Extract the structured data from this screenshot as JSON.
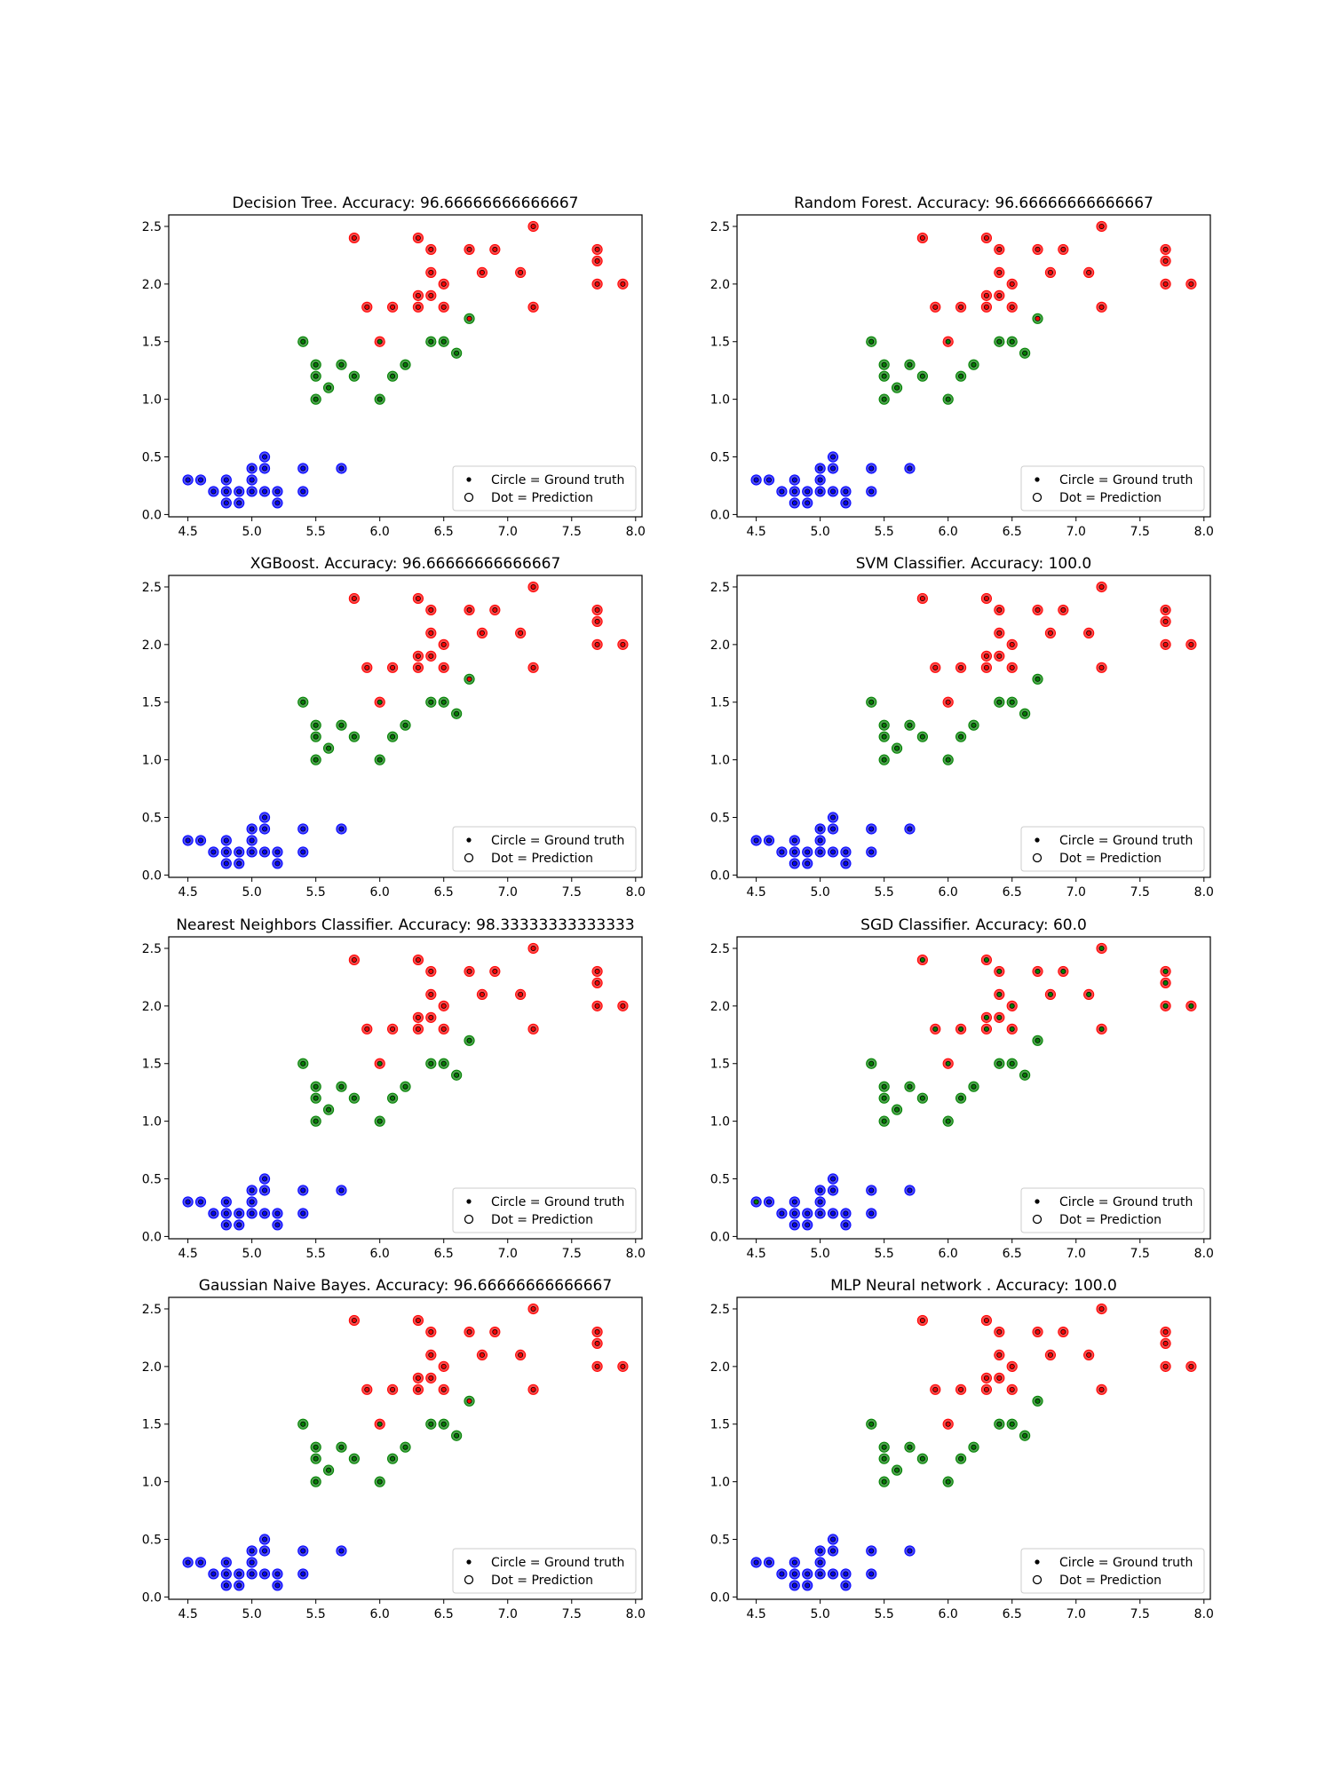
{
  "colors": {
    "class_0": "#0000ff",
    "class_1": "#008000",
    "class_2": "#ff0000",
    "edge": "#000000"
  },
  "legend": {
    "placement": "lower-right",
    "entries": [
      "Circle = Ground truth",
      "Dot = Prediction"
    ]
  },
  "chart_data": [
    {
      "type": "scatter",
      "title": "Decision Tree. Accuracy: 96.66666666666667",
      "xlim": [
        4.35,
        8.05
      ],
      "ylim": [
        -0.02,
        2.6
      ],
      "xticks": [
        "4.5",
        "5.0",
        "5.5",
        "6.0",
        "6.5",
        "7.0",
        "7.5",
        "8.0"
      ],
      "yticks": [
        "0.0",
        "0.5",
        "1.0",
        "1.5",
        "2.0",
        "2.5"
      ],
      "grid": false,
      "legend_placement": "lower-right",
      "misclassified": [
        [
          6.7,
          1.7,
          1,
          2
        ],
        [
          6.0,
          1.5,
          2,
          1
        ]
      ]
    },
    {
      "type": "scatter",
      "title": "Random Forest. Accuracy: 96.66666666666667",
      "xlim": [
        4.35,
        8.05
      ],
      "ylim": [
        -0.02,
        2.6
      ],
      "xticks": [
        "4.5",
        "5.0",
        "5.5",
        "6.0",
        "6.5",
        "7.0",
        "7.5",
        "8.0"
      ],
      "yticks": [
        "0.0",
        "0.5",
        "1.0",
        "1.5",
        "2.0",
        "2.5"
      ],
      "grid": false,
      "legend_placement": "lower-right",
      "misclassified": [
        [
          6.7,
          1.7,
          1,
          2
        ],
        [
          6.0,
          1.5,
          2,
          1
        ]
      ]
    },
    {
      "type": "scatter",
      "title": "XGBoost. Accuracy: 96.66666666666667",
      "xlim": [
        4.35,
        8.05
      ],
      "ylim": [
        -0.02,
        2.6
      ],
      "xticks": [
        "4.5",
        "5.0",
        "5.5",
        "6.0",
        "6.5",
        "7.0",
        "7.5",
        "8.0"
      ],
      "yticks": [
        "0.0",
        "0.5",
        "1.0",
        "1.5",
        "2.0",
        "2.5"
      ],
      "grid": false,
      "legend_placement": "lower-right",
      "misclassified": [
        [
          6.7,
          1.7,
          1,
          2
        ],
        [
          6.0,
          1.5,
          2,
          1
        ]
      ]
    },
    {
      "type": "scatter",
      "title": "SVM Classifier. Accuracy: 100.0",
      "xlim": [
        4.35,
        8.05
      ],
      "ylim": [
        -0.02,
        2.6
      ],
      "xticks": [
        "4.5",
        "5.0",
        "5.5",
        "6.0",
        "6.5",
        "7.0",
        "7.5",
        "8.0"
      ],
      "yticks": [
        "0.0",
        "0.5",
        "1.0",
        "1.5",
        "2.0",
        "2.5"
      ],
      "grid": false,
      "legend_placement": "lower-right",
      "misclassified": []
    },
    {
      "type": "scatter",
      "title": "Nearest Neighbors Classifier. Accuracy: 98.33333333333333",
      "xlim": [
        4.35,
        8.05
      ],
      "ylim": [
        -0.02,
        2.6
      ],
      "xticks": [
        "4.5",
        "5.0",
        "5.5",
        "6.0",
        "6.5",
        "7.0",
        "7.5",
        "8.0"
      ],
      "yticks": [
        "0.0",
        "0.5",
        "1.0",
        "1.5",
        "2.0",
        "2.5"
      ],
      "grid": false,
      "legend_placement": "lower-right",
      "misclassified": [
        [
          6.0,
          1.5,
          2,
          1
        ]
      ]
    },
    {
      "type": "scatter",
      "title": "SGD Classifier. Accuracy: 60.0",
      "xlim": [
        4.35,
        8.05
      ],
      "ylim": [
        -0.02,
        2.6
      ],
      "xticks": [
        "4.5",
        "5.0",
        "5.5",
        "6.0",
        "6.5",
        "7.0",
        "7.5",
        "8.0"
      ],
      "yticks": [
        "0.0",
        "0.5",
        "1.0",
        "1.5",
        "2.0",
        "2.5"
      ],
      "grid": false,
      "legend_placement": "lower-right",
      "misclassified": [
        [
          4.5,
          0.3,
          0,
          1
        ],
        "all_class_2_predicted_as_1"
      ]
    },
    {
      "type": "scatter",
      "title": "Gaussian Naive Bayes. Accuracy: 96.66666666666667",
      "xlim": [
        4.35,
        8.05
      ],
      "ylim": [
        -0.02,
        2.6
      ],
      "xticks": [
        "4.5",
        "5.0",
        "5.5",
        "6.0",
        "6.5",
        "7.0",
        "7.5",
        "8.0"
      ],
      "yticks": [
        "0.0",
        "0.5",
        "1.0",
        "1.5",
        "2.0",
        "2.5"
      ],
      "grid": false,
      "legend_placement": "lower-right",
      "misclassified": [
        [
          6.7,
          1.7,
          1,
          2
        ],
        [
          6.0,
          1.5,
          2,
          1
        ]
      ]
    },
    {
      "type": "scatter",
      "title": "MLP Neural network . Accuracy: 100.0",
      "xlim": [
        4.35,
        8.05
      ],
      "ylim": [
        -0.02,
        2.6
      ],
      "xticks": [
        "4.5",
        "5.0",
        "5.5",
        "6.0",
        "6.5",
        "7.0",
        "7.5",
        "8.0"
      ],
      "yticks": [
        "0.0",
        "0.5",
        "1.0",
        "1.5",
        "2.0",
        "2.5"
      ],
      "grid": false,
      "legend_placement": "lower-right",
      "misclassified": []
    }
  ],
  "points": {
    "columns": [
      "x",
      "y",
      "ground_truth_class"
    ],
    "values": [
      [
        4.5,
        0.3,
        0
      ],
      [
        4.6,
        0.3,
        0
      ],
      [
        4.7,
        0.2,
        0
      ],
      [
        4.8,
        0.3,
        0
      ],
      [
        4.8,
        0.2,
        0
      ],
      [
        4.8,
        0.1,
        0
      ],
      [
        4.9,
        0.2,
        0
      ],
      [
        4.9,
        0.1,
        0
      ],
      [
        5.0,
        0.4,
        0
      ],
      [
        5.0,
        0.3,
        0
      ],
      [
        5.0,
        0.2,
        0
      ],
      [
        5.1,
        0.5,
        0
      ],
      [
        5.1,
        0.4,
        0
      ],
      [
        5.1,
        0.2,
        0
      ],
      [
        5.2,
        0.2,
        0
      ],
      [
        5.2,
        0.1,
        0
      ],
      [
        5.4,
        0.4,
        0
      ],
      [
        5.4,
        0.2,
        0
      ],
      [
        5.7,
        0.4,
        0
      ],
      [
        5.4,
        1.5,
        1
      ],
      [
        5.5,
        1.3,
        1
      ],
      [
        5.5,
        1.2,
        1
      ],
      [
        5.5,
        1.0,
        1
      ],
      [
        5.6,
        1.1,
        1
      ],
      [
        5.7,
        1.3,
        1
      ],
      [
        5.8,
        1.2,
        1
      ],
      [
        6.0,
        1.0,
        1
      ],
      [
        6.1,
        1.2,
        1
      ],
      [
        6.2,
        1.3,
        1
      ],
      [
        6.4,
        1.5,
        1
      ],
      [
        6.5,
        1.5,
        1
      ],
      [
        6.6,
        1.4,
        1
      ],
      [
        6.7,
        1.7,
        1
      ],
      [
        5.8,
        2.4,
        2
      ],
      [
        5.9,
        1.8,
        2
      ],
      [
        6.0,
        1.5,
        2
      ],
      [
        6.1,
        1.8,
        2
      ],
      [
        6.3,
        2.4,
        2
      ],
      [
        6.3,
        1.9,
        2
      ],
      [
        6.3,
        1.8,
        2
      ],
      [
        6.4,
        2.3,
        2
      ],
      [
        6.4,
        2.1,
        2
      ],
      [
        6.4,
        1.9,
        2
      ],
      [
        6.5,
        2.0,
        2
      ],
      [
        6.5,
        1.8,
        2
      ],
      [
        6.7,
        2.3,
        2
      ],
      [
        6.8,
        2.1,
        2
      ],
      [
        6.9,
        2.3,
        2
      ],
      [
        7.1,
        2.1,
        2
      ],
      [
        7.2,
        2.5,
        2
      ],
      [
        7.2,
        1.8,
        2
      ],
      [
        7.7,
        2.3,
        2
      ],
      [
        7.7,
        2.2,
        2
      ],
      [
        7.7,
        2.0,
        2
      ],
      [
        7.9,
        2.0,
        2
      ]
    ]
  }
}
